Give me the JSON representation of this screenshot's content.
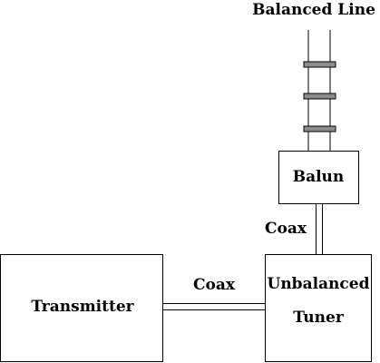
{
  "diagram": {
    "top_label": "Balanced Line",
    "balun_label": "Balun",
    "vertical_coax_label": "Coax",
    "transmitter_label": "Transmitter",
    "horizontal_coax_label": "Coax",
    "tuner_label_line1": "Unbalanced",
    "tuner_label_line2": "Tuner"
  },
  "colors": {
    "stroke": "#000000",
    "spacer_fill": "#8c8c8c",
    "background": "#ffffff"
  }
}
